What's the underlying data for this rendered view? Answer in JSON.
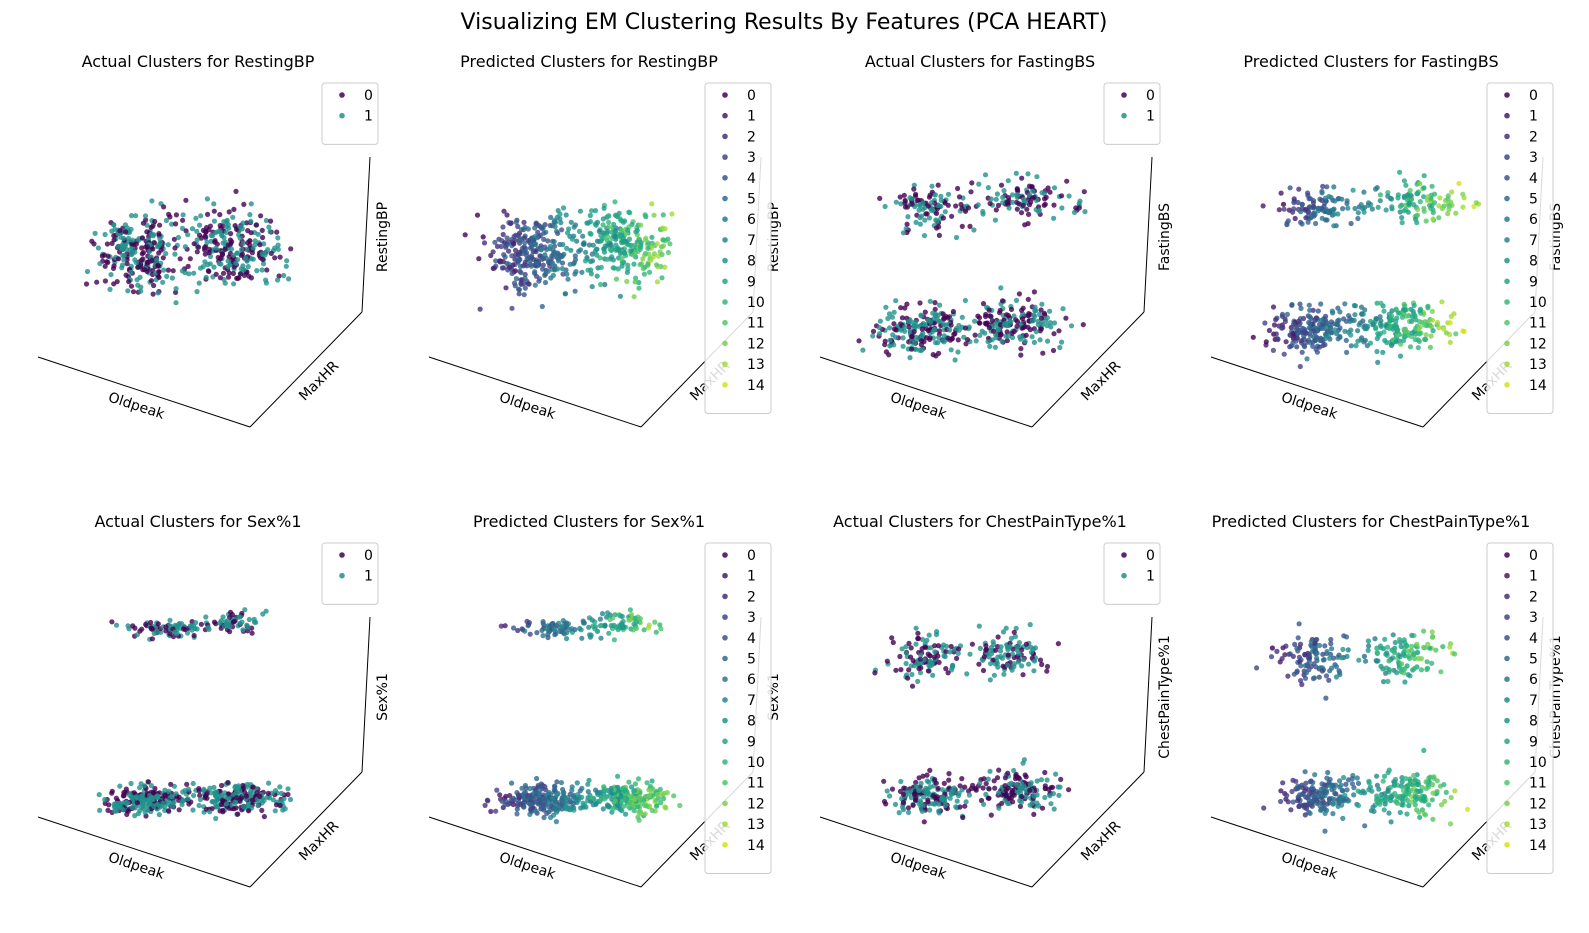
{
  "figure": {
    "title": "Visualizing EM Clustering Results By Features (PCA HEART)"
  },
  "palettes": {
    "actual": [
      "#440154",
      "#21918c"
    ],
    "predicted": [
      "#440154",
      "#481a6c",
      "#472f7d",
      "#414487",
      "#39568c",
      "#31688e",
      "#2a788e",
      "#23888e",
      "#1f988b",
      "#22a884",
      "#35b779",
      "#54c568",
      "#7ad151",
      "#a5db36",
      "#d2e21b"
    ]
  },
  "chart_data": [
    {
      "type": "scatter",
      "projection": "3d",
      "title": "Actual Clusters for RestingBP",
      "xlabel": "Oldpeak",
      "ylabel": "MaxHR",
      "zlabel": "RestingBP",
      "legend": {
        "placement": "top-right",
        "entries": [
          "0",
          "1"
        ]
      },
      "grid": false
    },
    {
      "type": "scatter",
      "projection": "3d",
      "title": "Predicted Clusters for RestingBP",
      "xlabel": "Oldpeak",
      "ylabel": "MaxHR",
      "zlabel": "RestingBP",
      "legend": {
        "placement": "top-right",
        "entries": [
          "0",
          "1",
          "2",
          "3",
          "4",
          "5",
          "6",
          "7",
          "8",
          "9",
          "10",
          "11",
          "12",
          "13",
          "14"
        ]
      },
      "grid": false
    },
    {
      "type": "scatter",
      "projection": "3d",
      "title": "Actual Clusters for FastingBS",
      "xlabel": "Oldpeak",
      "ylabel": "MaxHR",
      "zlabel": "FastingBS",
      "legend": {
        "placement": "top-right",
        "entries": [
          "0",
          "1"
        ]
      },
      "grid": false
    },
    {
      "type": "scatter",
      "projection": "3d",
      "title": "Predicted Clusters for FastingBS",
      "xlabel": "Oldpeak",
      "ylabel": "MaxHR",
      "zlabel": "FastingBS",
      "legend": {
        "placement": "top-right",
        "entries": [
          "0",
          "1",
          "2",
          "3",
          "4",
          "5",
          "6",
          "7",
          "8",
          "9",
          "10",
          "11",
          "12",
          "13",
          "14"
        ]
      },
      "grid": false
    },
    {
      "type": "scatter",
      "projection": "3d",
      "title": "Actual Clusters for Sex%1",
      "xlabel": "Oldpeak",
      "ylabel": "MaxHR",
      "zlabel": "Sex%1",
      "legend": {
        "placement": "top-right",
        "entries": [
          "0",
          "1"
        ]
      },
      "grid": false
    },
    {
      "type": "scatter",
      "projection": "3d",
      "title": "Predicted Clusters for Sex%1",
      "xlabel": "Oldpeak",
      "ylabel": "MaxHR",
      "zlabel": "Sex%1",
      "legend": {
        "placement": "top-right",
        "entries": [
          "0",
          "1",
          "2",
          "3",
          "4",
          "5",
          "6",
          "7",
          "8",
          "9",
          "10",
          "11",
          "12",
          "13",
          "14"
        ]
      },
      "grid": false
    },
    {
      "type": "scatter",
      "projection": "3d",
      "title": "Actual Clusters for ChestPainType%1",
      "xlabel": "Oldpeak",
      "ylabel": "MaxHR",
      "zlabel": "ChestPainType%1",
      "legend": {
        "placement": "top-right",
        "entries": [
          "0",
          "1"
        ]
      },
      "grid": false
    },
    {
      "type": "scatter",
      "projection": "3d",
      "title": "Predicted Clusters for ChestPainType%1",
      "xlabel": "Oldpeak",
      "ylabel": "MaxHR",
      "zlabel": "ChestPainType%1",
      "legend": {
        "placement": "top-right",
        "entries": [
          "0",
          "1",
          "2",
          "3",
          "4",
          "5",
          "6",
          "7",
          "8",
          "9",
          "10",
          "11",
          "12",
          "13",
          "14"
        ]
      },
      "grid": false
    }
  ]
}
